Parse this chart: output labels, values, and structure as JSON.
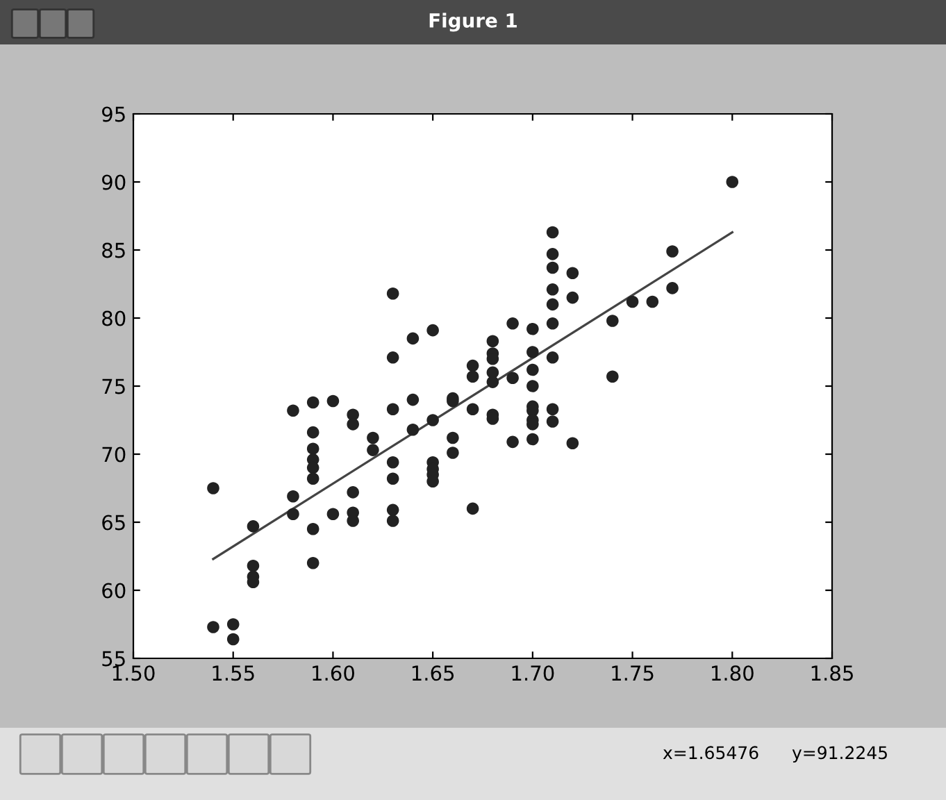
{
  "chart_data": {
    "type": "scatter",
    "title": "Figure 1",
    "annotations": [
      "x=1.65476",
      "y=91.2245"
    ],
    "series": [
      {
        "color": "#222222",
        "marker": "circle",
        "x": [
          1.54,
          1.54,
          1.55,
          1.55,
          1.56,
          1.56,
          1.56,
          1.56,
          1.58,
          1.58,
          1.58,
          1.59,
          1.59,
          1.59,
          1.59,
          1.59,
          1.59,
          1.59,
          1.59,
          1.6,
          1.6,
          1.61,
          1.61,
          1.61,
          1.61,
          1.61,
          1.62,
          1.62,
          1.63,
          1.63,
          1.63,
          1.63,
          1.63,
          1.63,
          1.63,
          1.64,
          1.64,
          1.64,
          1.65,
          1.65,
          1.65,
          1.65,
          1.65,
          1.65,
          1.66,
          1.66,
          1.66,
          1.66,
          1.67,
          1.67,
          1.67,
          1.67,
          1.68,
          1.68,
          1.68,
          1.68,
          1.68,
          1.68,
          1.68,
          1.69,
          1.69,
          1.69,
          1.7,
          1.7,
          1.7,
          1.7,
          1.7,
          1.7,
          1.7,
          1.7,
          1.7,
          1.71,
          1.71,
          1.71,
          1.71,
          1.71,
          1.71,
          1.71,
          1.71,
          1.71,
          1.72,
          1.72,
          1.72,
          1.74,
          1.74,
          1.75,
          1.76,
          1.77,
          1.77,
          1.8
        ],
        "values": [
          67.5,
          57.3,
          57.5,
          56.4,
          64.7,
          61.8,
          61.0,
          60.6,
          73.2,
          66.9,
          65.6,
          73.8,
          71.6,
          70.4,
          69.6,
          69.0,
          68.2,
          64.5,
          62.0,
          73.9,
          65.6,
          72.9,
          72.2,
          67.2,
          65.7,
          65.1,
          71.2,
          70.3,
          81.8,
          77.1,
          73.3,
          69.4,
          68.2,
          65.9,
          65.1,
          78.5,
          74.0,
          71.8,
          79.1,
          72.5,
          69.4,
          68.9,
          68.5,
          68.0,
          74.1,
          73.9,
          71.2,
          70.1,
          76.5,
          75.7,
          73.3,
          66.0,
          78.3,
          77.4,
          77.0,
          76.0,
          75.3,
          72.9,
          72.6,
          79.6,
          75.6,
          70.9,
          79.2,
          77.5,
          76.2,
          75.0,
          73.5,
          73.2,
          72.5,
          72.2,
          71.1,
          86.3,
          84.7,
          83.7,
          82.1,
          81.0,
          79.6,
          77.1,
          73.3,
          72.4,
          83.3,
          81.5,
          70.8,
          79.8,
          75.7,
          81.2,
          81.2,
          84.9,
          82.2,
          90.0
        ]
      },
      {
        "type": "line",
        "color": "#444444",
        "line_style": "solid",
        "x": [
          1.54,
          1.8
        ],
        "values": [
          62.3,
          86.3
        ]
      }
    ],
    "xlim": [
      1.5,
      1.85
    ],
    "xticks": [
      {
        "value": 1.5,
        "label": "1.50"
      },
      {
        "value": 1.55,
        "label": "1.55"
      },
      {
        "value": 1.6,
        "label": "1.60"
      },
      {
        "value": 1.65,
        "label": "1.65"
      },
      {
        "value": 1.7,
        "label": "1.70"
      },
      {
        "value": 1.75,
        "label": "1.75"
      },
      {
        "value": 1.8,
        "label": "1.80"
      },
      {
        "value": 1.85,
        "label": "1.85"
      }
    ],
    "ylim": [
      55,
      95
    ],
    "yticks": [
      55,
      60,
      65,
      70,
      75,
      80,
      85,
      90,
      95
    ],
    "grid": false
  }
}
